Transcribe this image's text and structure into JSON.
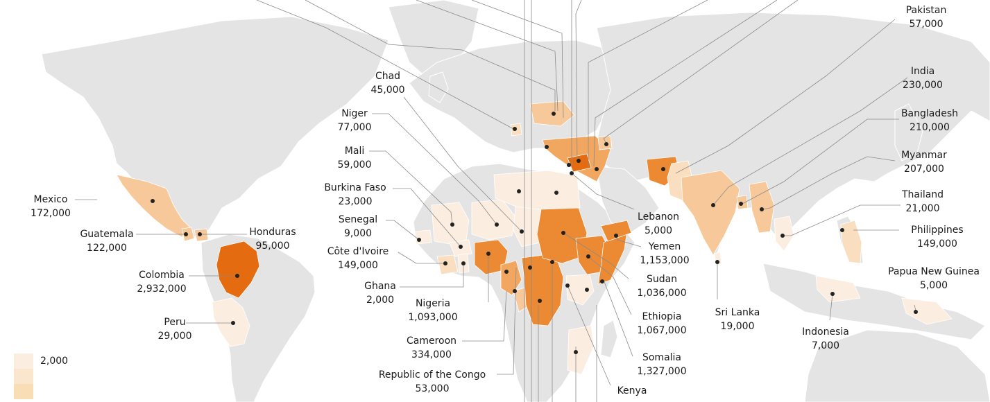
{
  "colors": {
    "land": "#e4e4e4",
    "ocean": "#ffffff",
    "leader": "#8a8a8a",
    "dot": "#222222",
    "scale": [
      "#fbeee0",
      "#f9dfc0",
      "#f6c89a",
      "#f2a760",
      "#ec8a33",
      "#e46b10"
    ]
  },
  "labels": [
    {
      "id": "pakistan",
      "name": "Pakistan",
      "value": "57,000"
    },
    {
      "id": "india",
      "name": "India",
      "value": "230,000"
    },
    {
      "id": "bangladesh",
      "name": "Bangladesh",
      "value": "210,000"
    },
    {
      "id": "myanmar",
      "name": "Myanmar",
      "value": "207,000"
    },
    {
      "id": "thailand",
      "name": "Thailand",
      "value": "21,000"
    },
    {
      "id": "philippines",
      "name": "Philippines",
      "value": "149,000"
    },
    {
      "id": "papua-new-guinea",
      "name": "Papua New Guinea",
      "value": "5,000"
    },
    {
      "id": "indonesia",
      "name": "Indonesia",
      "value": "7,000"
    },
    {
      "id": "sri-lanka",
      "name": "Sri Lanka",
      "value": "19,000"
    },
    {
      "id": "chad",
      "name": "Chad",
      "value": "45,000"
    },
    {
      "id": "niger",
      "name": "Niger",
      "value": "77,000"
    },
    {
      "id": "mali",
      "name": "Mali",
      "value": "59,000"
    },
    {
      "id": "burkina-faso",
      "name": "Burkina Faso",
      "value": "23,000"
    },
    {
      "id": "senegal",
      "name": "Senegal",
      "value": "9,000"
    },
    {
      "id": "cote-divoire",
      "name": "Côte d'Ivoire",
      "value": "149,000"
    },
    {
      "id": "ghana",
      "name": "Ghana",
      "value": "2,000"
    },
    {
      "id": "nigeria",
      "name": "Nigeria",
      "value": "1,093,000"
    },
    {
      "id": "cameroon",
      "name": "Cameroon",
      "value": "334,000"
    },
    {
      "id": "republic-of-the-congo",
      "name": "Republic of the Congo",
      "value": "53,000"
    },
    {
      "id": "lebanon",
      "name": "Lebanon",
      "value": "5,000"
    },
    {
      "id": "yemen",
      "name": "Yemen",
      "value": "1,153,000"
    },
    {
      "id": "sudan",
      "name": "Sudan",
      "value": "1,036,000"
    },
    {
      "id": "ethiopia",
      "name": "Ethiopia",
      "value": "1,067,000"
    },
    {
      "id": "somalia",
      "name": "Somalia",
      "value": "1,327,000"
    },
    {
      "id": "kenya",
      "name": "Kenya",
      "value": ""
    },
    {
      "id": "mexico",
      "name": "Mexico",
      "value": "172,000"
    },
    {
      "id": "guatemala",
      "name": "Guatemala",
      "value": "122,000"
    },
    {
      "id": "honduras",
      "name": "Honduras",
      "value": "95,000"
    },
    {
      "id": "colombia",
      "name": "Colombia",
      "value": "2,932,000"
    },
    {
      "id": "peru",
      "name": "Peru",
      "value": "29,000"
    }
  ],
  "legend": {
    "entries": [
      {
        "label": "2,000"
      },
      {
        "label": ""
      },
      {
        "label": ""
      }
    ]
  }
}
